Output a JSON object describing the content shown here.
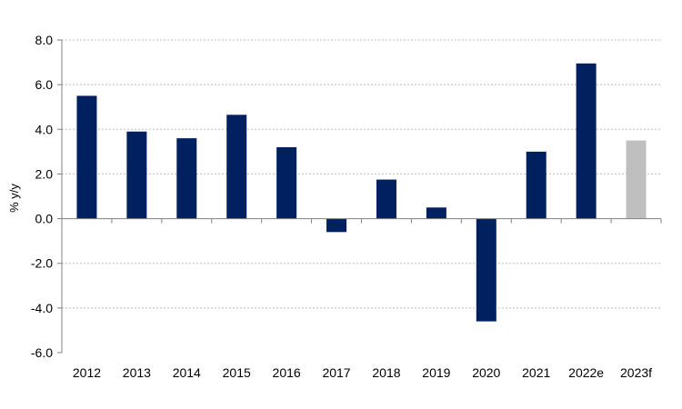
{
  "chart_data": {
    "type": "bar",
    "title": "",
    "xlabel": "",
    "ylabel": "% y/y",
    "categories": [
      "2012",
      "2013",
      "2014",
      "2015",
      "2016",
      "2017",
      "2018",
      "2019",
      "2020",
      "2021",
      "2022e",
      "2023f"
    ],
    "values": [
      5.5,
      3.9,
      3.6,
      4.65,
      3.2,
      -0.6,
      1.75,
      0.5,
      -4.6,
      3.0,
      6.95,
      3.5
    ],
    "bar_colors": [
      "#002060",
      "#002060",
      "#002060",
      "#002060",
      "#002060",
      "#002060",
      "#002060",
      "#002060",
      "#002060",
      "#002060",
      "#002060",
      "#BFBFBF"
    ],
    "ylim": [
      -6,
      8
    ],
    "yticks": [
      8,
      6,
      4,
      2,
      0,
      -2,
      -4,
      -6
    ],
    "ytick_labels": [
      "8.0",
      "6.0",
      "4.0",
      "2.0",
      "0.0",
      "-2.0",
      "-4.0",
      "-6.0"
    ],
    "grid": true,
    "legend": "none"
  }
}
